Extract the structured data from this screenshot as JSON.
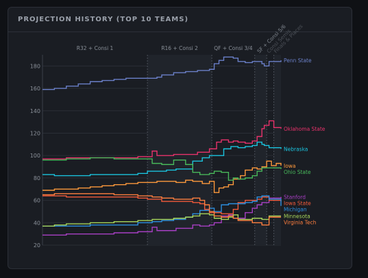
{
  "panel": {
    "title": "PROJECTION HISTORY (TOP 10 TEAMS)"
  },
  "chart_data": {
    "type": "line",
    "title": "",
    "xlabel": "",
    "ylabel": "",
    "ylim": [
      20,
      190
    ],
    "y_ticks": [
      20,
      40,
      60,
      80,
      100,
      120,
      140,
      160,
      180
    ],
    "grid": true,
    "legend": "labels at line ends",
    "x_range": [
      0,
      100
    ],
    "phases": [
      {
        "label": "R32 + Consi 1",
        "start": 0,
        "end": 44
      },
      {
        "label": "R16 + Consi 2",
        "start": 44,
        "end": 71
      },
      {
        "label": "QF + Consi 3/4",
        "start": 71,
        "end": 89
      },
      {
        "label": "SF + Consi 5/6",
        "start": 89,
        "end": 94
      },
      {
        "label": "Consi Semis",
        "start": 94,
        "end": 97
      },
      {
        "label": "Finals & Places",
        "start": 97,
        "end": 100
      }
    ],
    "series": [
      {
        "name": "Penn State",
        "color": "#6b80c9",
        "x": [
          0,
          5,
          10,
          15,
          20,
          25,
          30,
          35,
          40,
          44,
          48,
          50,
          55,
          60,
          65,
          70,
          72,
          74,
          76,
          78,
          80,
          82,
          84,
          85,
          86,
          88,
          90,
          92,
          93,
          95,
          100
        ],
        "y": [
          159,
          160,
          162,
          164,
          166,
          167,
          168,
          169,
          169,
          169,
          170,
          172,
          174,
          175,
          176,
          177,
          182,
          185,
          188,
          188,
          187,
          184,
          184,
          183,
          183,
          184,
          184,
          182,
          180,
          184,
          185
        ]
      },
      {
        "name": "Oklahoma State",
        "color": "#e8326b",
        "x": [
          0,
          5,
          10,
          20,
          30,
          40,
          44,
          46,
          48,
          50,
          55,
          60,
          65,
          70,
          73,
          75,
          78,
          80,
          82,
          85,
          88,
          90,
          92,
          93,
          95,
          97,
          100
        ],
        "y": [
          97,
          97,
          98,
          98,
          98,
          99,
          99,
          104,
          100,
          100,
          101,
          101,
          103,
          106,
          112,
          114,
          112,
          113,
          112,
          111,
          113,
          117,
          124,
          127,
          131,
          125,
          124
        ]
      },
      {
        "name": "Nebraska",
        "color": "#1ac4df",
        "x": [
          0,
          5,
          10,
          20,
          30,
          40,
          44,
          48,
          52,
          56,
          60,
          63,
          67,
          70,
          73,
          76,
          79,
          82,
          85,
          88,
          90,
          92,
          93,
          95,
          100
        ],
        "y": [
          83,
          82,
          82,
          83,
          83,
          84,
          86,
          86,
          87,
          88,
          88,
          95,
          98,
          100,
          100,
          106,
          108,
          107,
          108,
          109,
          112,
          110,
          109,
          107,
          106
        ]
      },
      {
        "name": "Iowa",
        "color": "#ff9a3c",
        "x": [
          0,
          5,
          10,
          15,
          20,
          25,
          30,
          35,
          40,
          44,
          48,
          52,
          56,
          60,
          63,
          67,
          70,
          72,
          74,
          76,
          78,
          80,
          83,
          85,
          88,
          90,
          92,
          94,
          96,
          98,
          100
        ],
        "y": [
          69,
          70,
          70,
          71,
          72,
          73,
          74,
          75,
          76,
          76,
          77,
          77,
          76,
          78,
          77,
          75,
          77,
          67,
          71,
          72,
          74,
          79,
          82,
          87,
          89,
          88,
          90,
          95,
          91,
          93,
          91
        ]
      },
      {
        "name": "Ohio State",
        "color": "#48b85a",
        "x": [
          0,
          5,
          10,
          20,
          30,
          40,
          44,
          46,
          50,
          55,
          60,
          63,
          66,
          70,
          72,
          75,
          78,
          80,
          82,
          85,
          88,
          90,
          92,
          95,
          100
        ],
        "y": [
          96,
          96,
          97,
          98,
          97,
          97,
          97,
          93,
          92,
          96,
          92,
          85,
          83,
          84,
          86,
          85,
          78,
          80,
          79,
          80,
          82,
          86,
          89,
          89,
          88
        ]
      },
      {
        "name": "Stanford",
        "color": "#a83fc4",
        "x": [
          0,
          5,
          10,
          20,
          30,
          40,
          44,
          46,
          48,
          52,
          56,
          60,
          63,
          66,
          70,
          72,
          75,
          78,
          80,
          82,
          85,
          88,
          90,
          92,
          95,
          100
        ],
        "y": [
          29,
          29,
          30,
          30,
          31,
          32,
          32,
          36,
          33,
          33,
          35,
          35,
          38,
          37,
          38,
          40,
          46,
          47,
          44,
          44,
          49,
          53,
          56,
          58,
          62,
          63
        ]
      },
      {
        "name": "Iowa State",
        "color": "#f15a3a",
        "x": [
          0,
          5,
          10,
          20,
          30,
          40,
          44,
          47,
          50,
          55,
          60,
          63,
          66,
          68,
          70,
          72,
          75,
          78,
          80,
          82,
          85,
          88,
          90,
          92,
          95,
          100
        ],
        "y": [
          64,
          64,
          63,
          63,
          63,
          62,
          61,
          61,
          59,
          59,
          59,
          58,
          57,
          52,
          49,
          49,
          48,
          48,
          52,
          58,
          60,
          60,
          61,
          63,
          60,
          59
        ]
      },
      {
        "name": "Michigan",
        "color": "#2c8fe0",
        "x": [
          0,
          5,
          10,
          20,
          30,
          40,
          44,
          46,
          50,
          55,
          60,
          63,
          66,
          70,
          72,
          75,
          78,
          80,
          82,
          85,
          88,
          90,
          92,
          95,
          100
        ],
        "y": [
          37,
          37,
          37,
          38,
          38,
          40,
          40,
          41,
          42,
          43,
          45,
          48,
          51,
          53,
          50,
          56,
          57,
          57,
          57,
          58,
          59,
          63,
          64,
          61,
          55
        ]
      },
      {
        "name": "Minnesota",
        "color": "#a7d55a",
        "x": [
          0,
          5,
          10,
          20,
          30,
          40,
          44,
          46,
          50,
          55,
          60,
          63,
          66,
          70,
          72,
          75,
          78,
          80,
          82,
          85,
          88,
          90,
          92,
          95,
          100
        ],
        "y": [
          37,
          38,
          39,
          40,
          41,
          42,
          42,
          43,
          43,
          44,
          45,
          46,
          48,
          47,
          44,
          43,
          45,
          47,
          43,
          43,
          44,
          44,
          43,
          46,
          46
        ]
      },
      {
        "name": "Virginia Tech",
        "color": "#ff7f3f",
        "x": [
          0,
          5,
          10,
          20,
          30,
          40,
          44,
          46,
          50,
          55,
          60,
          63,
          66,
          68,
          70,
          72,
          75,
          78,
          80,
          82,
          85,
          88,
          90,
          92,
          95,
          100
        ],
        "y": [
          65,
          66,
          66,
          66,
          65,
          64,
          64,
          63,
          62,
          61,
          61,
          62,
          60,
          56,
          50,
          46,
          45,
          46,
          44,
          42,
          42,
          40,
          40,
          38,
          45,
          45
        ]
      }
    ]
  }
}
